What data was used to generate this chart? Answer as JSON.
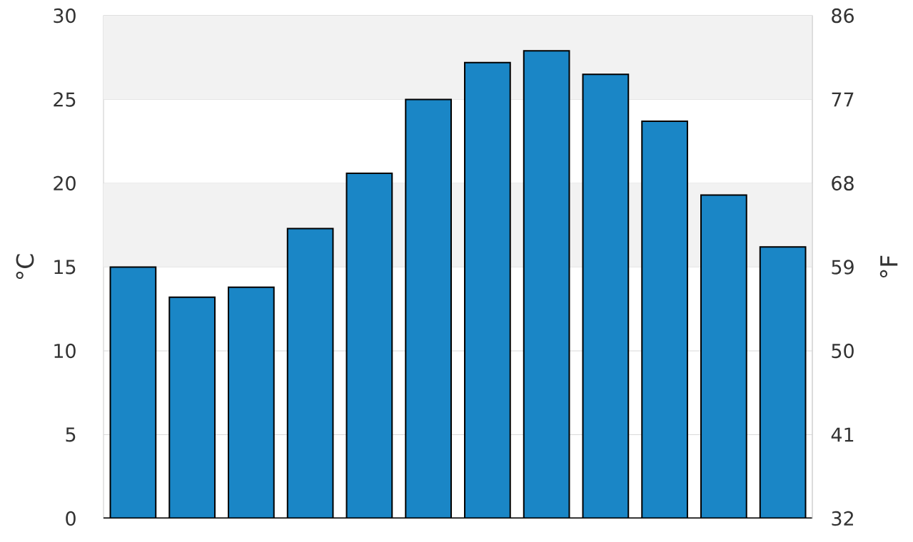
{
  "chart_data": {
    "type": "bar",
    "categories": [
      null,
      null,
      null,
      null,
      null,
      null,
      null,
      null,
      null,
      null,
      null,
      null
    ],
    "values": [
      15.0,
      13.2,
      13.8,
      17.3,
      20.6,
      25.0,
      27.2,
      27.9,
      26.5,
      23.7,
      19.3,
      16.2
    ],
    "color": "#1a86c6",
    "ylabel": "°C",
    "y2label": "°F",
    "ylim": [
      0,
      30
    ],
    "yticks": [
      0,
      5,
      10,
      15,
      20,
      25,
      30
    ],
    "y2lim": [
      32,
      86
    ],
    "y2ticks": [
      32,
      41,
      50,
      59,
      68,
      77,
      86
    ],
    "grid": "y",
    "bands": [
      {
        "axis": "y",
        "from": 15,
        "to": 20,
        "color": "#f2f2f2"
      },
      {
        "axis": "y",
        "from": 25,
        "to": 30,
        "color": "#f2f2f2"
      }
    ]
  }
}
